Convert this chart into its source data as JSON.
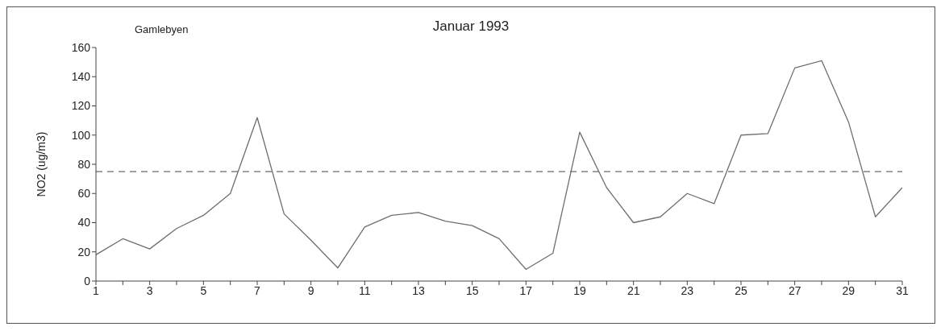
{
  "chart_data": {
    "type": "line",
    "title": "Januar 1993",
    "ylabel": "NO2 (ug/m3)",
    "annotations": [
      "Gamlebyen"
    ],
    "x": [
      1,
      2,
      3,
      4,
      5,
      6,
      7,
      8,
      9,
      10,
      11,
      12,
      13,
      14,
      15,
      16,
      17,
      18,
      19,
      20,
      21,
      22,
      23,
      24,
      25,
      26,
      27,
      28,
      29,
      30,
      31
    ],
    "series": [
      {
        "color": "#6e6e6e",
        "values": [
          18,
          29,
          22,
          36,
          45,
          60,
          112,
          46,
          28,
          9,
          37,
          45,
          47,
          41,
          38,
          29,
          8,
          19,
          102,
          64,
          40,
          44,
          60,
          53,
          100,
          101,
          146,
          151,
          109,
          44,
          64
        ]
      }
    ],
    "xlim": [
      1,
      31
    ],
    "xticks": [
      1,
      {
        "value": 2,
        "label": null
      },
      3,
      {
        "value": 4,
        "label": null
      },
      5,
      {
        "value": 6,
        "label": null
      },
      7,
      {
        "value": 8,
        "label": null
      },
      9,
      {
        "value": 10,
        "label": null
      },
      11,
      {
        "value": 12,
        "label": null
      },
      13,
      {
        "value": 14,
        "label": null
      },
      15,
      {
        "value": 16,
        "label": null
      },
      17,
      {
        "value": 18,
        "label": null
      },
      19,
      {
        "value": 20,
        "label": null
      },
      21,
      {
        "value": 22,
        "label": null
      },
      23,
      {
        "value": 24,
        "label": null
      },
      25,
      {
        "value": 26,
        "label": null
      },
      27,
      {
        "value": 28,
        "label": null
      },
      29,
      {
        "value": 30,
        "label": null
      },
      31
    ],
    "ylim": [
      0,
      160
    ],
    "yticks": [
      0,
      20,
      40,
      60,
      80,
      100,
      120,
      140,
      160
    ],
    "ref_lines": [
      {
        "axis": "y",
        "value": 75,
        "line_style": "dashed",
        "color": "#444444"
      }
    ],
    "grid": false,
    "legend": false,
    "marker": "none",
    "line_style": "solid"
  }
}
